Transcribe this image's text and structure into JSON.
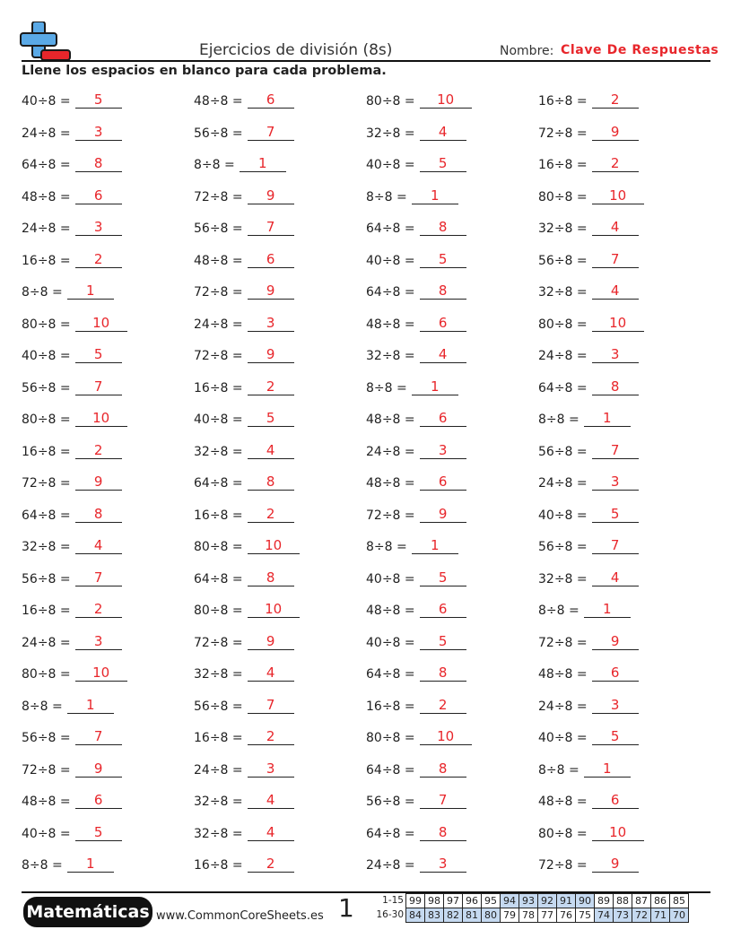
{
  "header": {
    "title": "Ejercicios de división (8s)",
    "name_label": "Nombre:",
    "name_value": "Clave De Respuestas",
    "instructions": "Llene los espacios en blanco para cada problema."
  },
  "problems": [
    [
      {
        "q": "40÷8 =",
        "a": "5"
      },
      {
        "q": "24÷8 =",
        "a": "3"
      },
      {
        "q": "64÷8 =",
        "a": "8"
      },
      {
        "q": "48÷8 =",
        "a": "6"
      },
      {
        "q": "24÷8 =",
        "a": "3"
      },
      {
        "q": "16÷8 =",
        "a": "2"
      },
      {
        "q": "8÷8 =",
        "a": "1"
      },
      {
        "q": "80÷8 =",
        "a": "10"
      },
      {
        "q": "40÷8 =",
        "a": "5"
      },
      {
        "q": "56÷8 =",
        "a": "7"
      },
      {
        "q": "80÷8 =",
        "a": "10"
      },
      {
        "q": "16÷8 =",
        "a": "2"
      },
      {
        "q": "72÷8 =",
        "a": "9"
      },
      {
        "q": "64÷8 =",
        "a": "8"
      },
      {
        "q": "32÷8 =",
        "a": "4"
      },
      {
        "q": "56÷8 =",
        "a": "7"
      },
      {
        "q": "16÷8 =",
        "a": "2"
      },
      {
        "q": "24÷8 =",
        "a": "3"
      },
      {
        "q": "80÷8 =",
        "a": "10"
      },
      {
        "q": "8÷8 =",
        "a": "1"
      },
      {
        "q": "56÷8 =",
        "a": "7"
      },
      {
        "q": "72÷8 =",
        "a": "9"
      },
      {
        "q": "48÷8 =",
        "a": "6"
      },
      {
        "q": "40÷8 =",
        "a": "5"
      },
      {
        "q": "8÷8 =",
        "a": "1"
      }
    ],
    [
      {
        "q": "48÷8 =",
        "a": "6"
      },
      {
        "q": "56÷8 =",
        "a": "7"
      },
      {
        "q": "8÷8 =",
        "a": "1"
      },
      {
        "q": "72÷8 =",
        "a": "9"
      },
      {
        "q": "56÷8 =",
        "a": "7"
      },
      {
        "q": "48÷8 =",
        "a": "6"
      },
      {
        "q": "72÷8 =",
        "a": "9"
      },
      {
        "q": "24÷8 =",
        "a": "3"
      },
      {
        "q": "72÷8 =",
        "a": "9"
      },
      {
        "q": "16÷8 =",
        "a": "2"
      },
      {
        "q": "40÷8 =",
        "a": "5"
      },
      {
        "q": "32÷8 =",
        "a": "4"
      },
      {
        "q": "64÷8 =",
        "a": "8"
      },
      {
        "q": "16÷8 =",
        "a": "2"
      },
      {
        "q": "80÷8 =",
        "a": "10"
      },
      {
        "q": "64÷8 =",
        "a": "8"
      },
      {
        "q": "80÷8 =",
        "a": "10"
      },
      {
        "q": "72÷8 =",
        "a": "9"
      },
      {
        "q": "32÷8 =",
        "a": "4"
      },
      {
        "q": "56÷8 =",
        "a": "7"
      },
      {
        "q": "16÷8 =",
        "a": "2"
      },
      {
        "q": "24÷8 =",
        "a": "3"
      },
      {
        "q": "32÷8 =",
        "a": "4"
      },
      {
        "q": "32÷8 =",
        "a": "4"
      },
      {
        "q": "16÷8 =",
        "a": "2"
      }
    ],
    [
      {
        "q": "80÷8 =",
        "a": "10"
      },
      {
        "q": "32÷8 =",
        "a": "4"
      },
      {
        "q": "40÷8 =",
        "a": "5"
      },
      {
        "q": "8÷8 =",
        "a": "1"
      },
      {
        "q": "64÷8 =",
        "a": "8"
      },
      {
        "q": "40÷8 =",
        "a": "5"
      },
      {
        "q": "64÷8 =",
        "a": "8"
      },
      {
        "q": "48÷8 =",
        "a": "6"
      },
      {
        "q": "32÷8 =",
        "a": "4"
      },
      {
        "q": "8÷8 =",
        "a": "1"
      },
      {
        "q": "48÷8 =",
        "a": "6"
      },
      {
        "q": "24÷8 =",
        "a": "3"
      },
      {
        "q": "48÷8 =",
        "a": "6"
      },
      {
        "q": "72÷8 =",
        "a": "9"
      },
      {
        "q": "8÷8 =",
        "a": "1"
      },
      {
        "q": "40÷8 =",
        "a": "5"
      },
      {
        "q": "48÷8 =",
        "a": "6"
      },
      {
        "q": "40÷8 =",
        "a": "5"
      },
      {
        "q": "64÷8 =",
        "a": "8"
      },
      {
        "q": "16÷8 =",
        "a": "2"
      },
      {
        "q": "80÷8 =",
        "a": "10"
      },
      {
        "q": "64÷8 =",
        "a": "8"
      },
      {
        "q": "56÷8 =",
        "a": "7"
      },
      {
        "q": "64÷8 =",
        "a": "8"
      },
      {
        "q": "24÷8 =",
        "a": "3"
      }
    ],
    [
      {
        "q": "16÷8 =",
        "a": "2"
      },
      {
        "q": "72÷8 =",
        "a": "9"
      },
      {
        "q": "16÷8 =",
        "a": "2"
      },
      {
        "q": "80÷8 =",
        "a": "10"
      },
      {
        "q": "32÷8 =",
        "a": "4"
      },
      {
        "q": "56÷8 =",
        "a": "7"
      },
      {
        "q": "32÷8 =",
        "a": "4"
      },
      {
        "q": "80÷8 =",
        "a": "10"
      },
      {
        "q": "24÷8 =",
        "a": "3"
      },
      {
        "q": "64÷8 =",
        "a": "8"
      },
      {
        "q": "8÷8 =",
        "a": "1"
      },
      {
        "q": "56÷8 =",
        "a": "7"
      },
      {
        "q": "24÷8 =",
        "a": "3"
      },
      {
        "q": "40÷8 =",
        "a": "5"
      },
      {
        "q": "56÷8 =",
        "a": "7"
      },
      {
        "q": "32÷8 =",
        "a": "4"
      },
      {
        "q": "8÷8 =",
        "a": "1"
      },
      {
        "q": "72÷8 =",
        "a": "9"
      },
      {
        "q": "48÷8 =",
        "a": "6"
      },
      {
        "q": "24÷8 =",
        "a": "3"
      },
      {
        "q": "40÷8 =",
        "a": "5"
      },
      {
        "q": "8÷8 =",
        "a": "1"
      },
      {
        "q": "48÷8 =",
        "a": "6"
      },
      {
        "q": "80÷8 =",
        "a": "10"
      },
      {
        "q": "72÷8 =",
        "a": "9"
      }
    ]
  ],
  "footer": {
    "brand": "Matemáticas",
    "site": "www.CommonCoreSheets.es",
    "page_number": "1",
    "score_rows": [
      {
        "label": "1-15",
        "cells": [
          "99",
          "98",
          "97",
          "96",
          "95",
          "94",
          "93",
          "92",
          "91",
          "90",
          "89",
          "88",
          "87",
          "86",
          "85"
        ]
      },
      {
        "label": "16-30",
        "cells": [
          "84",
          "83",
          "82",
          "81",
          "80",
          "79",
          "78",
          "77",
          "76",
          "75",
          "74",
          "73",
          "72",
          "71",
          "70"
        ]
      }
    ],
    "highlight_color": "#c5d9f0"
  },
  "colors": {
    "answer": "#e8262b",
    "logo_plus": "#5aa9e6",
    "logo_minus": "#e8262b"
  }
}
